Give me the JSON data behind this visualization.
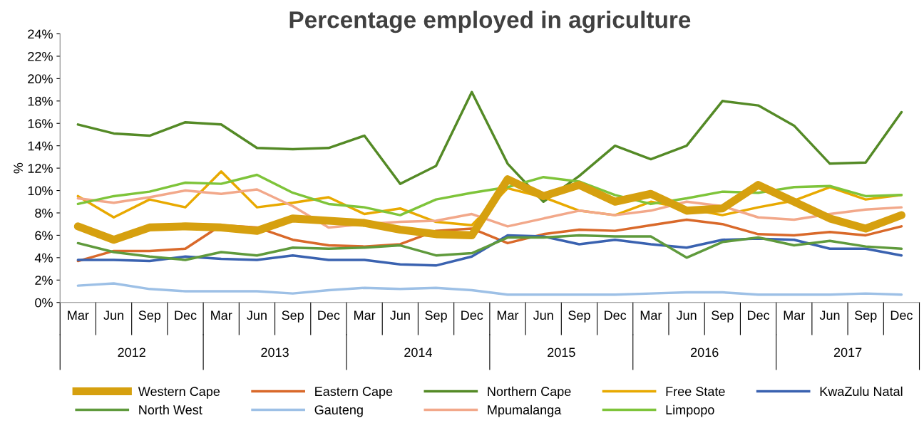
{
  "chart_data": {
    "type": "line",
    "title": "Percentage employed in agriculture",
    "ylabel": "%",
    "categories": [
      "Mar",
      "Jun",
      "Sep",
      "Dec",
      "Mar",
      "Jun",
      "Sep",
      "Dec",
      "Mar",
      "Jun",
      "Sep",
      "Dec",
      "Mar",
      "Jun",
      "Sep",
      "Dec",
      "Mar",
      "Jun",
      "Sep",
      "Dec",
      "Mar",
      "Jun",
      "Sep",
      "Dec"
    ],
    "annotations": [
      "2012",
      "2013",
      "2014",
      "2015",
      "2016",
      "2017"
    ],
    "ylim": [
      0,
      24
    ],
    "yticks": [
      {
        "value": 0,
        "label": "0%"
      },
      {
        "value": 2,
        "label": "2%"
      },
      {
        "value": 4,
        "label": "4%"
      },
      {
        "value": 6,
        "label": "6%"
      },
      {
        "value": 8,
        "label": "8%"
      },
      {
        "value": 10,
        "label": "10%"
      },
      {
        "value": 12,
        "label": "12%"
      },
      {
        "value": 14,
        "label": "14%"
      },
      {
        "value": 16,
        "label": "16%"
      },
      {
        "value": 18,
        "label": "18%"
      },
      {
        "value": 20,
        "label": "20%"
      },
      {
        "value": 22,
        "label": "22%"
      },
      {
        "value": 24,
        "label": "24%"
      }
    ],
    "grid": false,
    "legend": "bottom",
    "marker": "none",
    "line_style": "solid",
    "series": [
      {
        "name": "Western Cape",
        "color": "#d6a00f",
        "values": [
          6.8,
          5.6,
          6.7,
          6.8,
          6.7,
          6.4,
          7.5,
          7.3,
          7.1,
          6.5,
          6.1,
          6.0,
          11.0,
          9.5,
          10.5,
          9.0,
          9.7,
          8.2,
          8.4,
          10.5,
          9.0,
          7.5,
          6.6,
          7.8
        ]
      },
      {
        "name": "Eastern Cape",
        "color": "#d9692a",
        "values": [
          3.7,
          4.6,
          4.6,
          4.8,
          6.9,
          6.7,
          5.6,
          5.1,
          5.0,
          5.2,
          6.4,
          6.6,
          5.3,
          6.1,
          6.5,
          6.4,
          6.9,
          7.4,
          7.0,
          6.1,
          6.0,
          6.3,
          6.0,
          6.8
        ]
      },
      {
        "name": "Northern Cape",
        "color": "#548a26",
        "values": [
          15.9,
          15.1,
          14.9,
          16.1,
          15.9,
          13.8,
          13.7,
          13.8,
          14.9,
          10.6,
          12.2,
          18.8,
          12.4,
          9.0,
          11.3,
          14.0,
          12.8,
          14.0,
          18.0,
          17.6,
          15.8,
          12.4,
          12.5,
          17.0
        ]
      },
      {
        "name": "Free State",
        "color": "#e8a900",
        "values": [
          9.5,
          7.6,
          9.2,
          8.5,
          11.7,
          8.5,
          8.9,
          9.4,
          7.9,
          8.4,
          7.2,
          6.9,
          10.2,
          9.4,
          8.2,
          7.8,
          9.0,
          8.4,
          7.8,
          8.5,
          9.1,
          10.3,
          9.2,
          9.6
        ]
      },
      {
        "name": "KwaZulu Natal",
        "color": "#3a62b0",
        "values": [
          3.8,
          3.8,
          3.7,
          4.1,
          3.9,
          3.8,
          4.2,
          3.8,
          3.8,
          3.4,
          3.3,
          4.1,
          6.0,
          5.9,
          5.2,
          5.6,
          5.2,
          4.9,
          5.6,
          5.7,
          5.6,
          4.8,
          4.8,
          4.2
        ]
      },
      {
        "name": "North West",
        "color": "#5f9a3c",
        "values": [
          5.3,
          4.5,
          4.1,
          3.8,
          4.5,
          4.2,
          4.9,
          4.8,
          4.9,
          5.1,
          4.2,
          4.4,
          5.8,
          5.8,
          6.0,
          5.9,
          5.9,
          4.0,
          5.4,
          5.8,
          5.1,
          5.5,
          5.0,
          4.8
        ]
      },
      {
        "name": "Gauteng",
        "color": "#9dc0e6",
        "values": [
          1.5,
          1.7,
          1.2,
          1.0,
          1.0,
          1.0,
          0.8,
          1.1,
          1.3,
          1.2,
          1.3,
          1.1,
          0.7,
          0.7,
          0.7,
          0.7,
          0.8,
          0.9,
          0.9,
          0.7,
          0.7,
          0.7,
          0.8,
          0.7
        ]
      },
      {
        "name": "Mpumalanga",
        "color": "#f2a88a",
        "values": [
          9.3,
          8.9,
          9.4,
          10.0,
          9.7,
          10.1,
          8.6,
          6.7,
          7.0,
          7.2,
          7.3,
          7.9,
          6.8,
          7.5,
          8.2,
          7.8,
          8.2,
          9.0,
          8.6,
          7.6,
          7.4,
          7.9,
          8.3,
          8.5
        ]
      },
      {
        "name": "Limpopo",
        "color": "#7ec43a",
        "values": [
          8.8,
          9.5,
          9.9,
          10.7,
          10.6,
          11.4,
          9.8,
          8.8,
          8.5,
          7.8,
          9.2,
          9.8,
          10.3,
          11.2,
          10.8,
          9.6,
          8.8,
          9.3,
          9.9,
          9.8,
          10.3,
          10.4,
          9.5,
          9.6
        ]
      }
    ]
  }
}
